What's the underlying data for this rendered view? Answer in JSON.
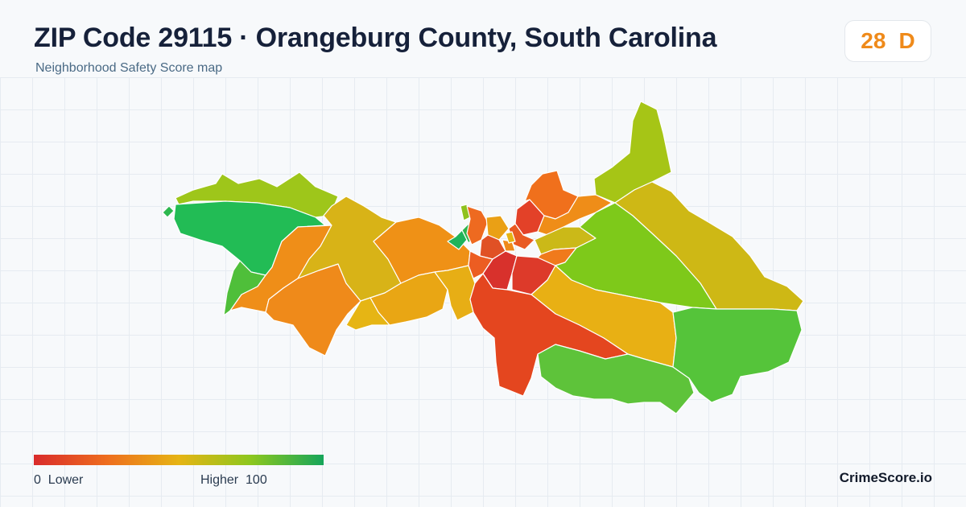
{
  "header": {
    "title": "ZIP Code 29115 · Orangeburg County, South Carolina",
    "subtitle": "Neighborhood Safety Score map"
  },
  "score_badge": {
    "score": "28",
    "grade": "D",
    "color": "#ef8a1a"
  },
  "legend": {
    "min_label": "0  Lower",
    "max_label": "Higher  100",
    "colors": [
      "#d92b2b",
      "#ee6d1e",
      "#e6b414",
      "#8cc71e",
      "#16a55a"
    ]
  },
  "brand": "CrimeScore.io"
}
